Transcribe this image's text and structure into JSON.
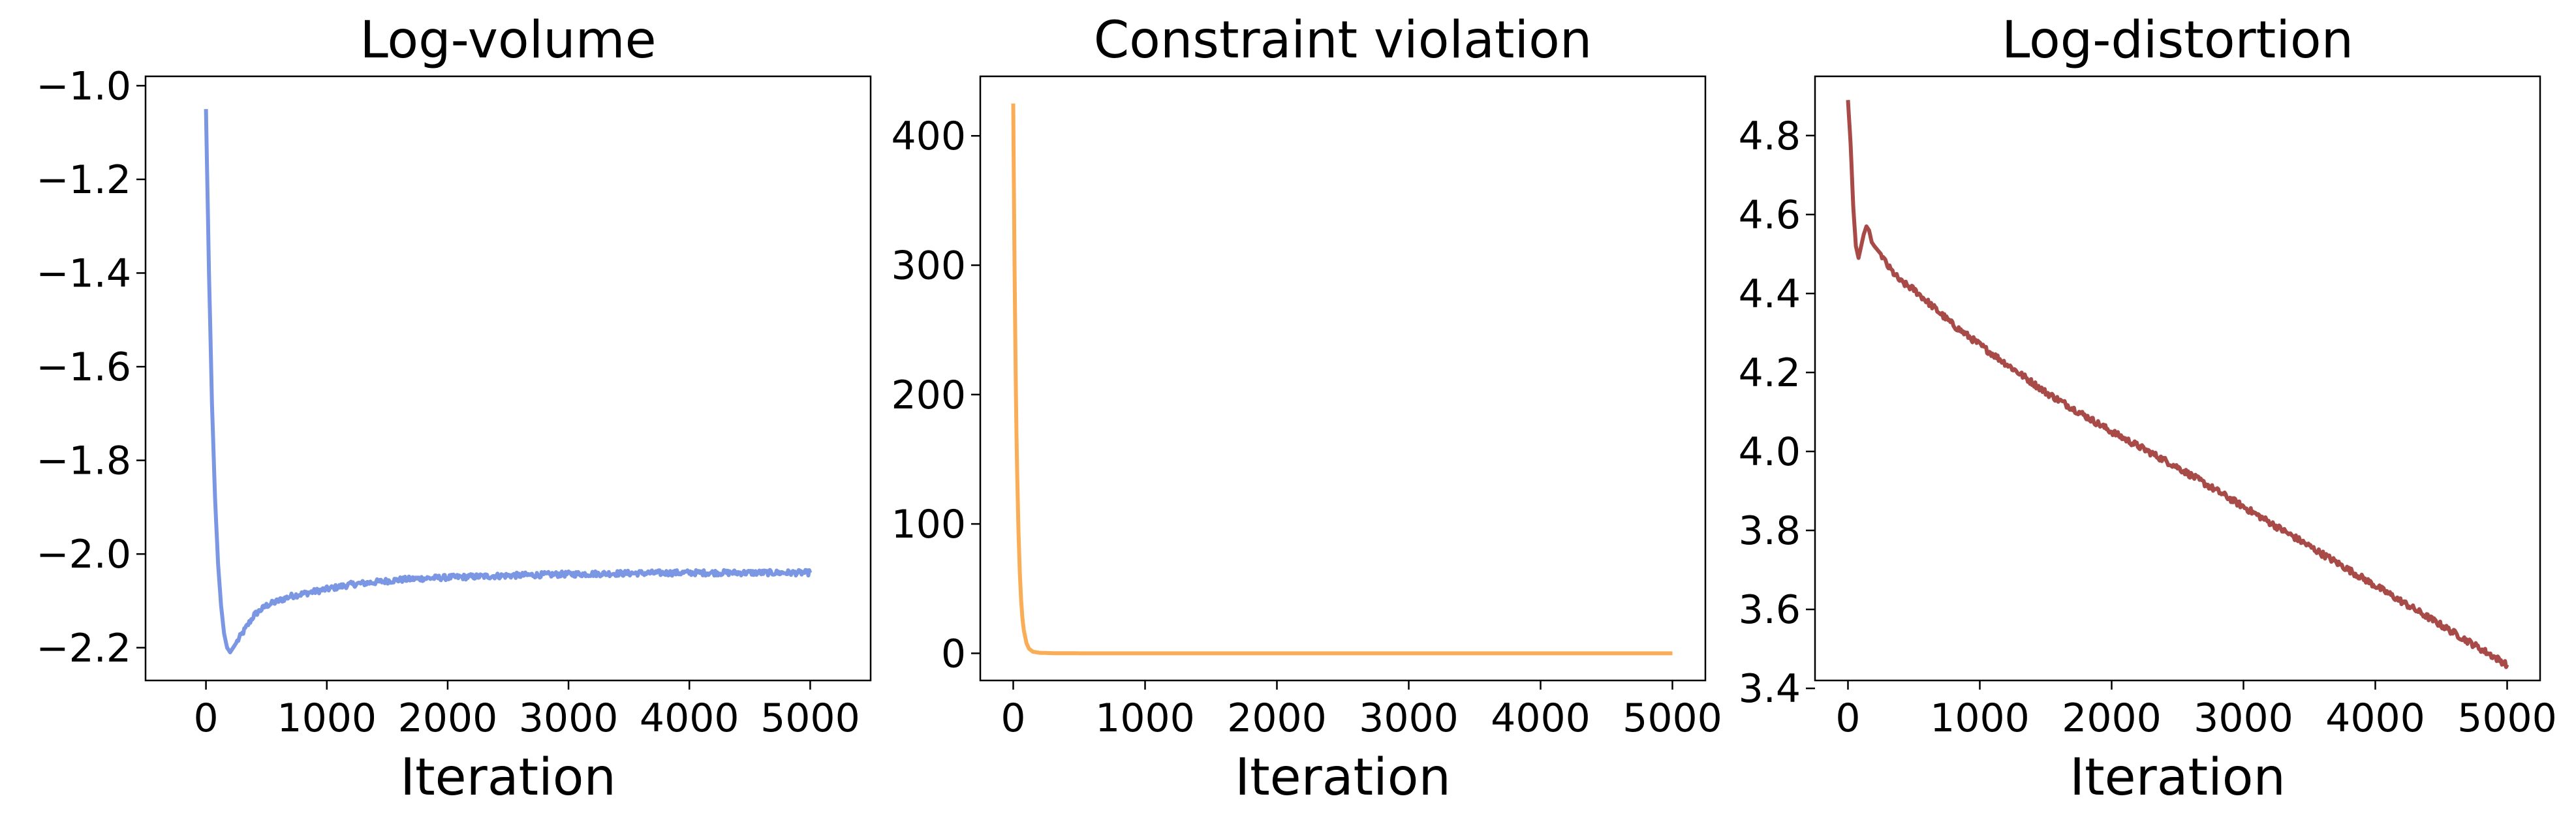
{
  "chart_data": [
    {
      "type": "line",
      "title": "Log-volume",
      "xlabel": "Iteration",
      "ylabel": "",
      "xlim": [
        -500,
        5500
      ],
      "ylim": [
        -2.27,
        -0.98
      ],
      "xticks": [
        0,
        1000,
        2000,
        3000,
        4000,
        5000
      ],
      "yticks": [
        -2.2,
        -2.0,
        -1.8,
        -1.6,
        -1.4,
        -1.2,
        -1.0
      ],
      "xtick_labels": [
        "0",
        "1000",
        "2000",
        "3000",
        "4000",
        "5000"
      ],
      "ytick_labels": [
        "−2.2",
        "−2.0",
        "−1.8",
        "−1.6",
        "−1.4",
        "−1.2",
        "−1.0"
      ],
      "grid": false,
      "series": [
        {
          "color": "#7b96e2",
          "noise": 0.006,
          "x": [
            0,
            25,
            50,
            75,
            100,
            125,
            150,
            175,
            200,
            225,
            250,
            300,
            350,
            400,
            500,
            600,
            700,
            800,
            1000,
            1200,
            1400,
            1600,
            1800,
            2000,
            2500,
            3000,
            3500,
            4000,
            4500,
            5000
          ],
          "y": [
            -1.05,
            -1.4,
            -1.68,
            -1.88,
            -2.02,
            -2.11,
            -2.17,
            -2.2,
            -2.21,
            -2.2,
            -2.19,
            -2.17,
            -2.15,
            -2.13,
            -2.11,
            -2.1,
            -2.09,
            -2.085,
            -2.075,
            -2.065,
            -2.06,
            -2.055,
            -2.052,
            -2.05,
            -2.046,
            -2.043,
            -2.041,
            -2.04,
            -2.04,
            -2.04
          ]
        }
      ]
    },
    {
      "type": "line",
      "title": "Constraint violation",
      "xlabel": "Iteration",
      "ylabel": "",
      "xlim": [
        -250,
        5250
      ],
      "ylim": [
        -21,
        446
      ],
      "xticks": [
        0,
        1000,
        2000,
        3000,
        4000,
        5000
      ],
      "yticks": [
        0,
        100,
        200,
        300,
        400
      ],
      "xtick_labels": [
        "0",
        "1000",
        "2000",
        "3000",
        "4000",
        "5000"
      ],
      "ytick_labels": [
        "0",
        "100",
        "200",
        "300",
        "400"
      ],
      "grid": false,
      "series": [
        {
          "color": "#f9ad57",
          "noise": 0,
          "x": [
            0,
            5,
            10,
            15,
            20,
            25,
            30,
            40,
            50,
            60,
            70,
            80,
            100,
            120,
            150,
            200,
            300,
            500,
            1000,
            2000,
            3000,
            4000,
            5000
          ],
          "y": [
            425,
            360,
            300,
            250,
            205,
            168,
            138,
            93,
            62,
            41,
            27,
            18,
            8,
            3.5,
            1.2,
            0.4,
            0.1,
            0,
            0,
            0,
            0,
            0,
            0
          ]
        }
      ]
    },
    {
      "type": "line",
      "title": "Log-distortion",
      "xlabel": "Iteration",
      "ylabel": "",
      "xlim": [
        -250,
        5250
      ],
      "ylim": [
        3.42,
        4.95
      ],
      "xticks": [
        0,
        1000,
        2000,
        3000,
        4000,
        5000
      ],
      "yticks": [
        3.4,
        3.6,
        3.8,
        4.0,
        4.2,
        4.4,
        4.6,
        4.8
      ],
      "xtick_labels": [
        "0",
        "1000",
        "2000",
        "3000",
        "4000",
        "5000"
      ],
      "ytick_labels": [
        "3.4",
        "3.6",
        "3.8",
        "4.0",
        "4.2",
        "4.4",
        "4.6",
        "4.8"
      ],
      "grid": false,
      "series": [
        {
          "color": "#a84a47",
          "noise": 0.008,
          "x": [
            0,
            20,
            40,
            60,
            80,
            100,
            120,
            140,
            160,
            180,
            200,
            250,
            300,
            400,
            500,
            600,
            700,
            800,
            1000,
            1500,
            2000,
            2500,
            3000,
            3500,
            4000,
            4500,
            5000
          ],
          "y": [
            4.89,
            4.78,
            4.62,
            4.52,
            4.49,
            4.52,
            4.55,
            4.57,
            4.56,
            4.53,
            4.52,
            4.5,
            4.47,
            4.43,
            4.41,
            4.38,
            4.35,
            4.32,
            4.27,
            4.15,
            4.05,
            3.96,
            3.86,
            3.76,
            3.66,
            3.56,
            3.46
          ]
        }
      ]
    }
  ]
}
